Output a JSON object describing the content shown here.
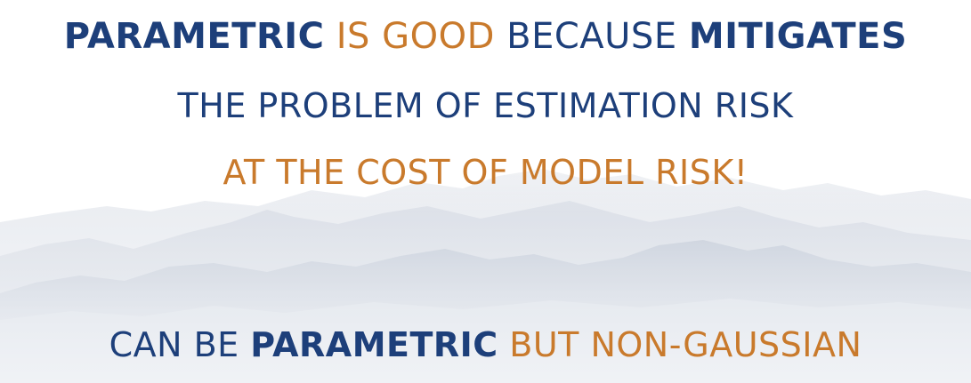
{
  "colors": {
    "blue": "#1d3f7a",
    "orange": "#c97a2c",
    "mist": "#c9d0dc"
  },
  "slide": {
    "line1": {
      "part1": "PARAMETRIC",
      "part2": " IS GOOD",
      "part3": " BECAUSE ",
      "part4": "MITIGATES"
    },
    "line2": "THE PROBLEM OF ESTIMATION RISK",
    "line3": "AT THE COST OF MODEL RISK!",
    "line4": {
      "part1": "CAN BE ",
      "part2": "PARAMETRIC",
      "part3": " BUT NON-GAUSSIAN"
    }
  }
}
